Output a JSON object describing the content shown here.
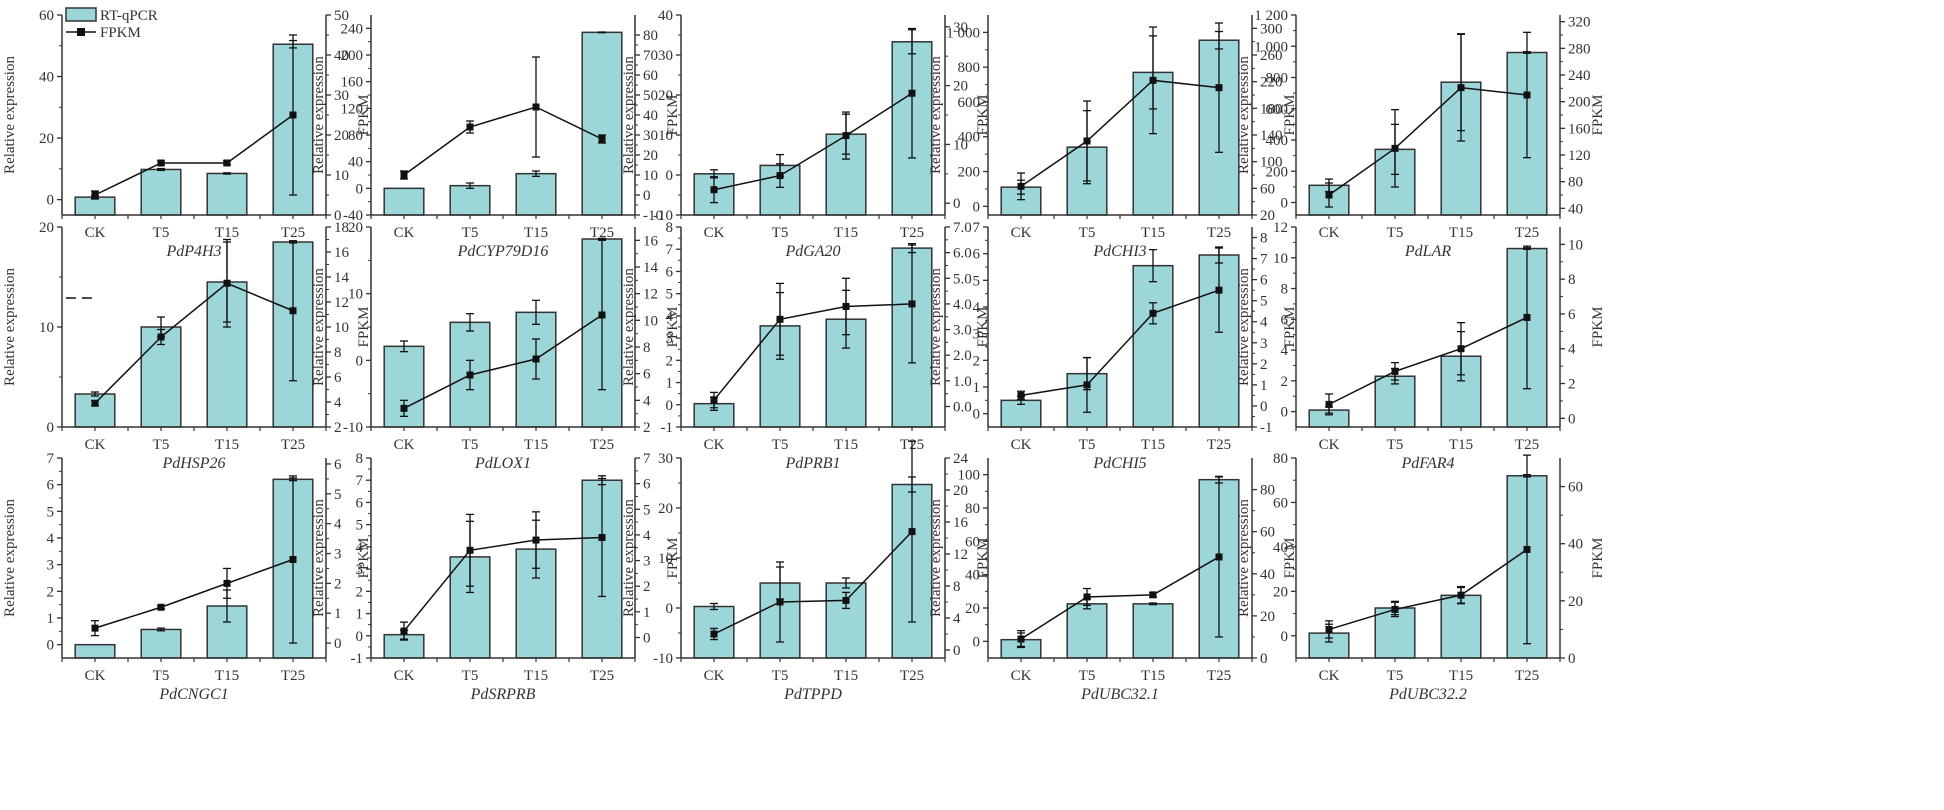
{
  "figure": {
    "legend": {
      "bar_label": "RT-qPCR",
      "line_label": "FPKM",
      "placement": "top-left"
    },
    "colors": {
      "bar_fill": "#9dd6d8",
      "bar_stroke": "#333333",
      "line": "#111111",
      "axis": "#333333"
    }
  },
  "chart_data": [
    {
      "type": "bar+line",
      "title": "PdP4H3",
      "categories": [
        "CK",
        "T5",
        "T15",
        "T25"
      ],
      "xlabel": "",
      "ylabel": "Relative expression",
      "y2label": "FPKM",
      "ylim": [
        -5,
        60
      ],
      "yticks": [
        0,
        20,
        40,
        60
      ],
      "y2lim": [
        0,
        50
      ],
      "y2ticks": [
        0,
        10,
        20,
        30,
        40,
        50
      ],
      "bars": [
        0.8,
        9.8,
        8.5,
        50.5
      ],
      "bar_err": [
        0.5,
        0.3,
        0.2,
        1.2
      ],
      "line": [
        5,
        13,
        13,
        25
      ],
      "line_err": [
        1,
        0.5,
        0.5,
        20
      ]
    },
    {
      "type": "bar+line",
      "title": "PdCYP79D16",
      "categories": [
        "CK",
        "T5",
        "T15",
        "T25"
      ],
      "xlabel": "",
      "ylabel": "Relative expression",
      "y2label": "FPKM",
      "ylim": [
        -40,
        260
      ],
      "yticks": [
        -40,
        0,
        40,
        80,
        120,
        160,
        200,
        240
      ],
      "y2lim": [
        -10,
        90
      ],
      "y2ticks": [
        -10,
        0,
        10,
        20,
        30,
        40,
        50,
        60,
        70,
        80
      ],
      "bars": [
        0,
        4,
        22,
        234
      ],
      "bar_err": [
        0,
        4,
        4,
        0.5
      ],
      "line": [
        10,
        34,
        44,
        28
      ],
      "line_err": [
        2,
        3,
        25,
        2
      ]
    },
    {
      "type": "bar+line",
      "title": "PdGA20",
      "categories": [
        "CK",
        "T5",
        "T15",
        "T25"
      ],
      "xlabel": "",
      "ylabel": "Relative expression",
      "y2label": "FPKM",
      "ylim": [
        -10,
        40
      ],
      "yticks": [
        -10,
        0,
        10,
        20,
        30,
        40
      ],
      "y2lim": [
        -2,
        32
      ],
      "y2ticks": [
        0,
        10,
        20,
        30
      ],
      "bars": [
        0.3,
        2.4,
        10.2,
        33.3
      ],
      "bar_err": [
        1,
        2.7,
        5,
        3
      ],
      "line": [
        2.3,
        4.7,
        11.5,
        18.7
      ],
      "line_err": [
        2.2,
        2,
        4,
        11
      ]
    },
    {
      "type": "bar+line",
      "title": "PdCHI3",
      "categories": [
        "CK",
        "T5",
        "T15",
        "T25"
      ],
      "xlabel": "",
      "ylabel": "Relative expression",
      "y2label": "FPKM",
      "ylim": [
        -50,
        1100
      ],
      "yticks": [
        0,
        200,
        400,
        600,
        800,
        1000
      ],
      "ytick_labels": [
        "0",
        "200",
        "400",
        "600",
        "800",
        "1 000"
      ],
      "y2lim": [
        20,
        320
      ],
      "y2ticks": [
        20,
        60,
        100,
        140,
        180,
        220,
        260,
        300
      ],
      "bars": [
        110,
        340,
        770,
        955
      ],
      "bar_err": [
        40,
        210,
        210,
        50
      ],
      "line": [
        63,
        131,
        222,
        211
      ],
      "line_err": [
        20,
        60,
        80,
        97
      ]
    },
    {
      "type": "bar+line",
      "title": "PdLAR",
      "categories": [
        "CK",
        "T5",
        "T15",
        "T25"
      ],
      "xlabel": "",
      "ylabel": "Relative expression",
      "y2label": "FPKM",
      "ylim": [
        -80,
        1200
      ],
      "yticks": [
        0,
        200,
        400,
        600,
        800,
        1000,
        1200
      ],
      "ytick_labels": [
        "0",
        "200",
        "400",
        "600",
        "800",
        "1 000",
        "1 200"
      ],
      "y2lim": [
        30,
        330
      ],
      "y2ticks": [
        40,
        80,
        120,
        160,
        200,
        240,
        280,
        320
      ],
      "bars": [
        110,
        340,
        770,
        960
      ],
      "bar_err": [
        40,
        160,
        310,
        5
      ],
      "line": [
        60,
        130,
        221,
        210
      ],
      "line_err": [
        18,
        58,
        80,
        94
      ]
    },
    {
      "type": "bar+line",
      "title": "PdHSP26",
      "categories": [
        "CK",
        "T5",
        "T15",
        "T25"
      ],
      "xlabel": "",
      "ylabel": "Relative expression",
      "y2label": "FPKM",
      "ylim": [
        0,
        20
      ],
      "yticks": [
        0,
        10,
        20
      ],
      "y2lim": [
        2,
        18
      ],
      "y2ticks": [
        2,
        4,
        6,
        8,
        10,
        12,
        14,
        16,
        18
      ],
      "bars": [
        3.3,
        10,
        14.5,
        18.5
      ],
      "bar_err": [
        0.2,
        1,
        4,
        0.1
      ],
      "line": [
        3.9,
        9.2,
        13.5,
        11.3
      ],
      "line_err": [
        0.2,
        0.6,
        3.5,
        5.6
      ]
    },
    {
      "type": "bar+line",
      "title": "PdLOX1",
      "categories": [
        "CK",
        "T5",
        "T15",
        "T25"
      ],
      "xlabel": "",
      "ylabel": "Relative expression",
      "y2label": "FPKM",
      "ylim": [
        -10,
        20
      ],
      "yticks": [
        -10,
        0,
        10,
        20
      ],
      "y2lim": [
        2,
        17
      ],
      "y2ticks": [
        2,
        4,
        6,
        8,
        10,
        12,
        14,
        16
      ],
      "bars": [
        2.1,
        5.7,
        7.2,
        18.2
      ],
      "bar_err": [
        0.8,
        1.3,
        1.8,
        0.1
      ],
      "line": [
        3.4,
        5.9,
        7.1,
        10.4
      ],
      "line_err": [
        0.6,
        1.1,
        1.5,
        5.6
      ]
    },
    {
      "type": "bar+line",
      "title": "PdPRB1",
      "categories": [
        "CK",
        "T5",
        "T15",
        "T25"
      ],
      "xlabel": "",
      "ylabel": "Relative expression",
      "y2label": "FPKM",
      "ylim": [
        -1,
        8
      ],
      "yticks": [
        -1,
        0,
        1,
        2,
        3,
        4,
        5,
        6,
        7,
        8
      ],
      "y2lim": [
        -0.8,
        7.0
      ],
      "y2ticks": [
        0,
        1,
        2,
        3,
        4,
        5,
        6,
        7
      ],
      "y2tick_labels": [
        "0.0",
        "1.0",
        "2.0",
        "3.0",
        "4.0",
        "5.0",
        "6.0",
        "7.0"
      ],
      "bars": [
        0.05,
        3.55,
        3.85,
        7.05
      ],
      "bar_err": [
        0.3,
        1.5,
        1.3,
        0.2
      ],
      "line": [
        0.25,
        3.4,
        3.9,
        4.0
      ],
      "line_err": [
        0.3,
        1.4,
        1.1,
        2.3
      ]
    },
    {
      "type": "bar+line",
      "title": "PdCHI5",
      "categories": [
        "CK",
        "T5",
        "T15",
        "T25"
      ],
      "xlabel": "",
      "ylabel": "Relative expression",
      "y2label": "FPKM",
      "ylim": [
        -0.5,
        7
      ],
      "yticks": [
        0,
        1,
        2,
        3,
        4,
        5,
        6,
        7
      ],
      "y2lim": [
        -1,
        8.5
      ],
      "y2ticks": [
        -1,
        0,
        1,
        2,
        3,
        4,
        5,
        6,
        7,
        8
      ],
      "bars": [
        0.5,
        1.5,
        5.55,
        5.95
      ],
      "bar_err": [
        0.15,
        0.6,
        0.6,
        0.3
      ],
      "line": [
        0.5,
        1.0,
        4.4,
        5.5
      ],
      "line_err": [
        0.2,
        1.3,
        0.5,
        2.0
      ]
    },
    {
      "type": "bar+line",
      "title": "PdFAR4",
      "categories": [
        "CK",
        "T5",
        "T15",
        "T25"
      ],
      "xlabel": "",
      "ylabel": "Relative expression",
      "y2label": "FPKM",
      "ylim": [
        -1,
        12
      ],
      "yticks": [
        0,
        2,
        4,
        6,
        8,
        10,
        12
      ],
      "y2lim": [
        -0.5,
        11
      ],
      "y2ticks": [
        0,
        2,
        4,
        6,
        8,
        10
      ],
      "bars": [
        0.1,
        2.3,
        3.6,
        10.6
      ],
      "bar_err": [
        0.2,
        0.5,
        1.6,
        0.05
      ],
      "line": [
        0.8,
        2.7,
        4.0,
        5.8
      ],
      "line_err": [
        0.6,
        0.5,
        1.5,
        4.1
      ]
    },
    {
      "type": "bar+line",
      "title": "PdCNGC1",
      "categories": [
        "CK",
        "T5",
        "T15",
        "T25"
      ],
      "xlabel": "",
      "ylabel": "Relative expression",
      "y2label": "FPKM",
      "ylim": [
        -0.5,
        7
      ],
      "yticks": [
        0,
        1,
        2,
        3,
        4,
        5,
        6,
        7
      ],
      "y2lim": [
        -0.5,
        6.2
      ],
      "y2ticks": [
        0,
        1,
        2,
        3,
        4,
        5,
        6
      ],
      "bars": [
        0,
        0.57,
        1.45,
        6.2
      ],
      "bar_err": [
        0,
        0.05,
        0.6,
        0.05
      ],
      "line": [
        0.5,
        1.2,
        2.0,
        2.8
      ],
      "line_err": [
        0.25,
        0.05,
        0.5,
        2.8
      ]
    },
    {
      "type": "bar+line",
      "title": "PdSRPRB",
      "categories": [
        "CK",
        "T5",
        "T15",
        "T25"
      ],
      "xlabel": "",
      "ylabel": "Relative expression",
      "y2label": "FPKM",
      "ylim": [
        -1,
        8
      ],
      "yticks": [
        -1,
        0,
        1,
        2,
        3,
        4,
        5,
        6,
        7,
        8
      ],
      "y2lim": [
        -0.8,
        7
      ],
      "y2ticks": [
        0,
        1,
        2,
        3,
        4,
        5,
        6,
        7
      ],
      "bars": [
        0.05,
        3.55,
        3.9,
        7.0
      ],
      "bar_err": [
        0.2,
        1.6,
        1.3,
        0.2
      ],
      "line": [
        0.25,
        3.4,
        3.8,
        3.9
      ],
      "line_err": [
        0.35,
        1.4,
        1.1,
        2.3
      ]
    },
    {
      "type": "bar+line",
      "title": "PdTPPD",
      "categories": [
        "CK",
        "T5",
        "T15",
        "T25"
      ],
      "xlabel": "",
      "ylabel": "Relative expression",
      "y2label": "FPKM",
      "ylim": [
        -10,
        30
      ],
      "yticks": [
        -10,
        0,
        10,
        20,
        30
      ],
      "y2lim": [
        -1,
        24
      ],
      "y2ticks": [
        0,
        4,
        8,
        12,
        16,
        20,
        24
      ],
      "bars": [
        0.3,
        5,
        5,
        24.7
      ],
      "bar_err": [
        0.6,
        3.2,
        1,
        1.5
      ],
      "line": [
        2,
        6,
        6.2,
        14.8
      ],
      "line_err": [
        0.7,
        5,
        1,
        11.3
      ]
    },
    {
      "type": "bar+line",
      "title": "PdUBC32.1",
      "categories": [
        "CK",
        "T5",
        "T15",
        "T25"
      ],
      "xlabel": "",
      "ylabel": "Relative expression",
      "y2label": "FPKM",
      "ylim": [
        -10,
        110
      ],
      "yticks": [
        0,
        20,
        40,
        60,
        80,
        100
      ],
      "y2lim": [
        0,
        95
      ],
      "y2ticks": [
        0,
        20,
        40,
        60,
        80
      ],
      "bars": [
        1,
        22.5,
        22.5,
        97
      ],
      "bar_err": [
        4,
        3,
        0.5,
        2
      ],
      "line": [
        9,
        29,
        30,
        48
      ],
      "line_err": [
        4,
        4,
        1,
        38
      ]
    },
    {
      "type": "bar+line",
      "title": "PdUBC32.2",
      "categories": [
        "CK",
        "T5",
        "T15",
        "T25"
      ],
      "xlabel": "",
      "ylabel": "Relative expression",
      "y2label": "FPKM",
      "ylim": [
        -10,
        80
      ],
      "yticks": [
        0,
        20,
        40,
        60,
        80
      ],
      "y2lim": [
        0,
        70
      ],
      "y2ticks": [
        0,
        20,
        40,
        60
      ],
      "bars": [
        1.2,
        12.5,
        18.2,
        72
      ],
      "bar_err": [
        4,
        3,
        3.5,
        0.5
      ],
      "line": [
        10,
        17,
        22,
        38
      ],
      "line_err": [
        3,
        2.5,
        3,
        33
      ]
    }
  ]
}
